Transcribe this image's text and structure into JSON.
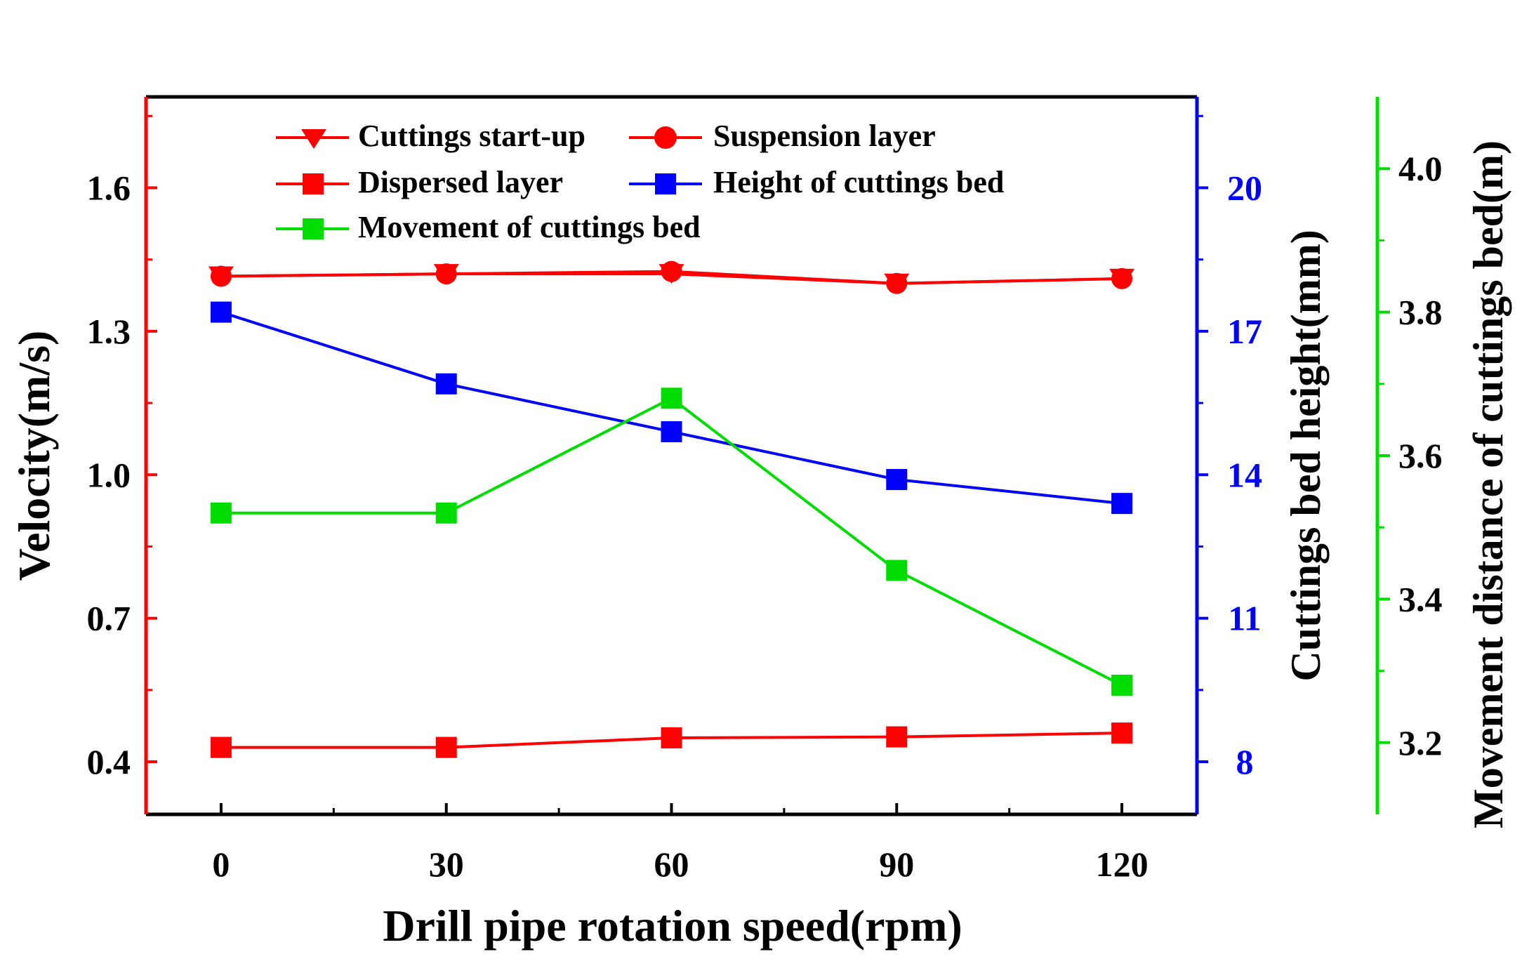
{
  "chart_data": {
    "type": "line",
    "xlabel": "Drill pipe rotation speed(rpm)",
    "x": [
      0,
      30,
      60,
      90,
      120
    ],
    "x_ticks": [
      "0",
      "30",
      "60",
      "90",
      "120"
    ],
    "xlim": [
      -10,
      130
    ],
    "y_left": {
      "label": "Velocity(m/s)",
      "color": "#ff0000",
      "ylim": [
        0.29,
        1.79
      ],
      "ticks": [
        "0.4",
        "0.7",
        "1.0",
        "1.3",
        "1.6"
      ],
      "tick_values": [
        0.4,
        0.7,
        1.0,
        1.3,
        1.6
      ]
    },
    "y_right1": {
      "label": "Cuttings bed height(mm)",
      "color": "#0000ff",
      "ylim": [
        6.9,
        21.9
      ],
      "ticks": [
        "8",
        "11",
        "14",
        "17",
        "20"
      ],
      "tick_values": [
        8,
        11,
        14,
        17,
        20
      ]
    },
    "y_right2": {
      "label": "Movement distance of cuttings bed(m)",
      "color": "#00dd00",
      "ylim": [
        3.1,
        4.1
      ],
      "ticks": [
        "3.2",
        "3.4",
        "3.6",
        "3.8",
        "4.0"
      ],
      "tick_values": [
        3.2,
        3.4,
        3.6,
        3.8,
        4.0
      ]
    },
    "series": [
      {
        "name": "Cuttings start-up",
        "axis": "y_left",
        "color": "#ff0000",
        "marker": "triangle-down",
        "values": [
          1.415,
          1.42,
          1.42,
          1.4,
          1.41
        ]
      },
      {
        "name": "Suspension layer",
        "axis": "y_left",
        "color": "#ff0000",
        "marker": "circle",
        "values": [
          1.415,
          1.42,
          1.425,
          1.4,
          1.41
        ]
      },
      {
        "name": "Dispersed layer",
        "axis": "y_left",
        "color": "#ff0000",
        "marker": "square",
        "values": [
          0.43,
          0.43,
          0.45,
          0.452,
          0.46
        ]
      },
      {
        "name": "Height of cuttings bed",
        "axis": "y_right1",
        "color": "#0000ff",
        "marker": "square",
        "values": [
          17.4,
          15.9,
          14.9,
          13.9,
          13.4
        ]
      },
      {
        "name": "Movement of cuttings bed",
        "axis": "y_right2",
        "color": "#00dd00",
        "marker": "square",
        "values": [
          3.52,
          3.52,
          3.68,
          3.44,
          3.28
        ]
      }
    ],
    "legend_position": "top-left"
  }
}
